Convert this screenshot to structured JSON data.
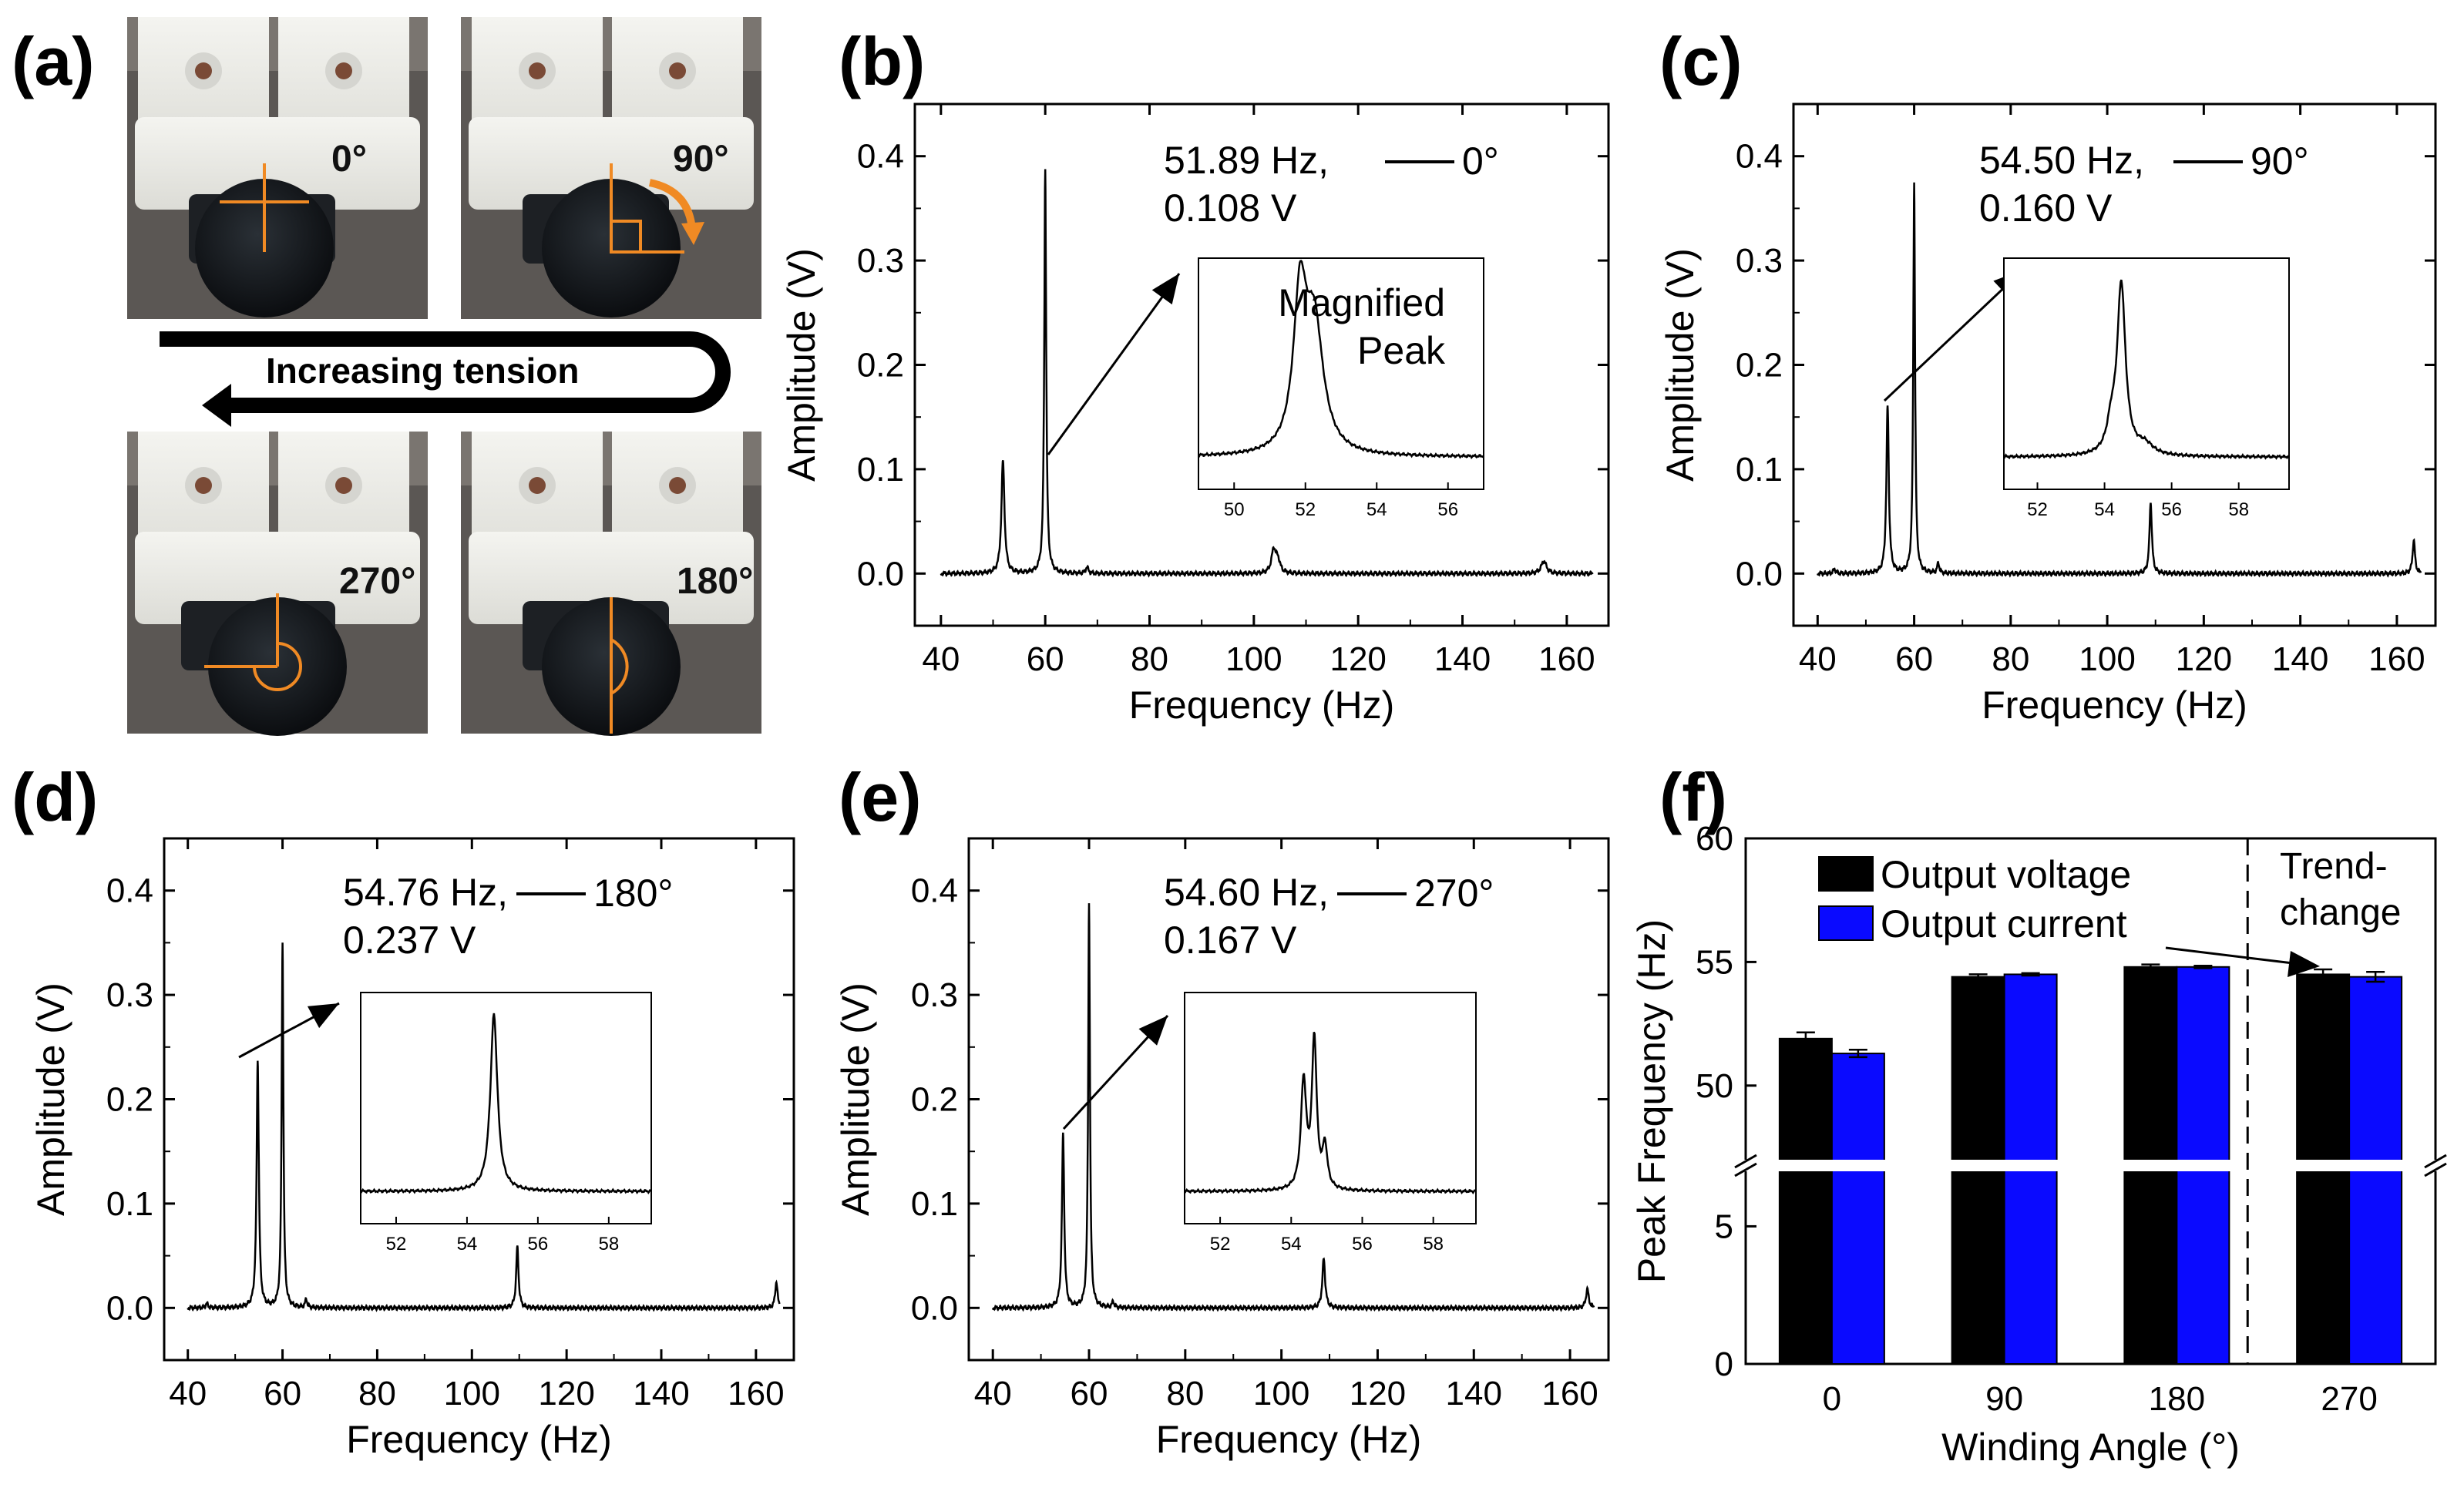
{
  "figure": {
    "panel_labels": [
      "(a)",
      "(b)",
      "(c)",
      "(d)",
      "(e)",
      "(f)"
    ]
  },
  "photo_panel": {
    "angles": [
      "0°",
      "90°",
      "270°",
      "180°"
    ],
    "arrow_label": "Increasing tension",
    "colors": {
      "marker": "#f08a24",
      "background": "#5b5754",
      "mount": "#efefeb",
      "knob": "#14181c"
    }
  },
  "chart_data": [
    {
      "panel": "(b)",
      "type": "line",
      "xlabel": "Frequency (Hz)",
      "ylabel": "Amplitude (V)",
      "xlim": [
        35,
        168
      ],
      "ylim": [
        -0.05,
        0.45
      ],
      "xticks": [
        40,
        60,
        80,
        100,
        120,
        140,
        160
      ],
      "yticks": [
        0.0,
        0.1,
        0.2,
        0.3,
        0.4
      ],
      "legend": "0°",
      "annotation": [
        "51.89 Hz,",
        "0.108 V"
      ],
      "peaks": [
        {
          "f": 51.89,
          "a": 0.108,
          "w": 0.35
        },
        {
          "f": 60.0,
          "a": 0.388,
          "w": 0.22
        },
        {
          "f": 68.0,
          "a": 0.006,
          "w": 0.3
        },
        {
          "f": 103.8,
          "a": 0.022,
          "w": 0.5
        },
        {
          "f": 104.6,
          "a": 0.012,
          "w": 0.5
        },
        {
          "f": 155.6,
          "a": 0.012,
          "w": 0.6
        }
      ],
      "inset": {
        "title": [
          "Magnified",
          "Peak"
        ],
        "xlim": [
          49,
          57
        ],
        "xticks": [
          50,
          52,
          54,
          56
        ],
        "peaks": [
          {
            "f": 51.85,
            "a": 0.72,
            "w": 0.22
          },
          {
            "f": 52.25,
            "a": 0.6,
            "w": 0.3
          }
        ]
      }
    },
    {
      "panel": "(c)",
      "type": "line",
      "xlabel": "Frequency (Hz)",
      "ylabel": "Amplitude (V)",
      "xlim": [
        35,
        168
      ],
      "ylim": [
        -0.05,
        0.45
      ],
      "xticks": [
        40,
        60,
        80,
        100,
        120,
        140,
        160
      ],
      "yticks": [
        0.0,
        0.1,
        0.2,
        0.3,
        0.4
      ],
      "legend": "90°",
      "annotation": [
        "54.50 Hz,",
        "0.160 V"
      ],
      "peaks": [
        {
          "f": 54.5,
          "a": 0.16,
          "w": 0.3
        },
        {
          "f": 60.0,
          "a": 0.375,
          "w": 0.22
        },
        {
          "f": 65.0,
          "a": 0.01,
          "w": 0.25
        },
        {
          "f": 43.5,
          "a": 0.004,
          "w": 0.3
        },
        {
          "f": 109.0,
          "a": 0.068,
          "w": 0.3
        },
        {
          "f": 163.5,
          "a": 0.032,
          "w": 0.3
        }
      ],
      "inset": {
        "title": [],
        "xlim": [
          51,
          59.5
        ],
        "xticks": [
          52,
          54,
          56,
          58
        ],
        "peaks": [
          {
            "f": 54.5,
            "a": 0.82,
            "w": 0.15
          },
          {
            "f": 54.2,
            "a": 0.12,
            "w": 0.15
          },
          {
            "f": 55.2,
            "a": 0.05,
            "w": 0.3
          }
        ]
      }
    },
    {
      "panel": "(d)",
      "type": "line",
      "xlabel": "Frequency (Hz)",
      "ylabel": "Amplitude (V)",
      "xlim": [
        35,
        168
      ],
      "ylim": [
        -0.05,
        0.45
      ],
      "xticks": [
        40,
        60,
        80,
        100,
        120,
        140,
        160
      ],
      "yticks": [
        0.0,
        0.1,
        0.2,
        0.3,
        0.4
      ],
      "legend": "180°",
      "annotation": [
        "54.76 Hz,",
        "0.237 V"
      ],
      "peaks": [
        {
          "f": 54.76,
          "a": 0.237,
          "w": 0.28
        },
        {
          "f": 60.0,
          "a": 0.35,
          "w": 0.22
        },
        {
          "f": 65.0,
          "a": 0.008,
          "w": 0.25
        },
        {
          "f": 44.0,
          "a": 0.004,
          "w": 0.3
        },
        {
          "f": 109.6,
          "a": 0.058,
          "w": 0.3
        },
        {
          "f": 164.3,
          "a": 0.025,
          "w": 0.3
        }
      ],
      "inset": {
        "title": [],
        "xlim": [
          51,
          59.2
        ],
        "xticks": [
          52,
          54,
          56,
          58
        ],
        "peaks": [
          {
            "f": 54.76,
            "a": 0.85,
            "w": 0.12
          }
        ]
      }
    },
    {
      "panel": "(e)",
      "type": "line",
      "xlabel": "Frequency (Hz)",
      "ylabel": "Amplitude (V)",
      "xlim": [
        35,
        168
      ],
      "ylim": [
        -0.05,
        0.45
      ],
      "xticks": [
        40,
        60,
        80,
        100,
        120,
        140,
        160
      ],
      "yticks": [
        0.0,
        0.1,
        0.2,
        0.3,
        0.4
      ],
      "legend": "270°",
      "annotation": [
        "54.60 Hz,",
        "0.167 V"
      ],
      "peaks": [
        {
          "f": 54.6,
          "a": 0.167,
          "w": 0.28
        },
        {
          "f": 60.0,
          "a": 0.388,
          "w": 0.22
        },
        {
          "f": 65.0,
          "a": 0.006,
          "w": 0.25
        },
        {
          "f": 108.8,
          "a": 0.047,
          "w": 0.35
        },
        {
          "f": 163.6,
          "a": 0.018,
          "w": 0.35
        }
      ],
      "inset": {
        "title": [],
        "xlim": [
          51,
          59.2
        ],
        "xticks": [
          52,
          54,
          56,
          58
        ],
        "peaks": [
          {
            "f": 54.35,
            "a": 0.52,
            "w": 0.09
          },
          {
            "f": 54.65,
            "a": 0.72,
            "w": 0.08
          },
          {
            "f": 54.95,
            "a": 0.2,
            "w": 0.08
          }
        ]
      }
    },
    {
      "panel": "(f)",
      "type": "bar",
      "xlabel": "Winding Angle (°)",
      "ylabel": "Peak Frequency (Hz)",
      "categories": [
        "0",
        "90",
        "180",
        "270"
      ],
      "series": [
        {
          "name": "Output voltage",
          "color": "#000000",
          "values": [
            51.9,
            54.4,
            54.8,
            54.5
          ],
          "errors": [
            0.25,
            0.1,
            0.1,
            0.2
          ]
        },
        {
          "name": "Output current",
          "color": "#0a0aff",
          "values": [
            51.3,
            54.5,
            54.8,
            54.4
          ],
          "errors": [
            0.15,
            0.05,
            0.05,
            0.2
          ]
        }
      ],
      "lower_axis": {
        "range": [
          0,
          7
        ],
        "ticks": [
          0,
          5
        ]
      },
      "upper_axis": {
        "range": [
          47,
          60
        ],
        "ticks": [
          50,
          55,
          60
        ]
      },
      "annotation": [
        "Trend-",
        "change"
      ]
    }
  ]
}
